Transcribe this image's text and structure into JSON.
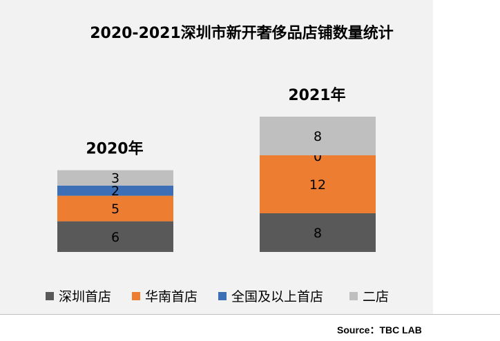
{
  "chart_data": {
    "type": "bar",
    "stacked": true,
    "title": "2020-2021深圳市新开奢侈品店铺数量统计",
    "categories": [
      "2020年",
      "2021年"
    ],
    "series": [
      {
        "name": "深圳首店",
        "color": "#595959",
        "values": [
          6,
          8
        ],
        "labels": [
          "6",
          "8"
        ]
      },
      {
        "name": "华南首店",
        "color": "#ed7d31",
        "values": [
          5,
          12
        ],
        "labels": [
          "5",
          "12"
        ]
      },
      {
        "name": "全国及以上首店",
        "color": "#3d6fb6",
        "values": [
          2,
          0
        ],
        "labels": [
          "2",
          "0"
        ]
      },
      {
        "name": "二店",
        "color": "#bfbfbf",
        "values": [
          3,
          8
        ],
        "labels": [
          "3",
          "8"
        ]
      }
    ],
    "legend": "bottom",
    "grid": false,
    "source": "Source：TBC LAB"
  }
}
